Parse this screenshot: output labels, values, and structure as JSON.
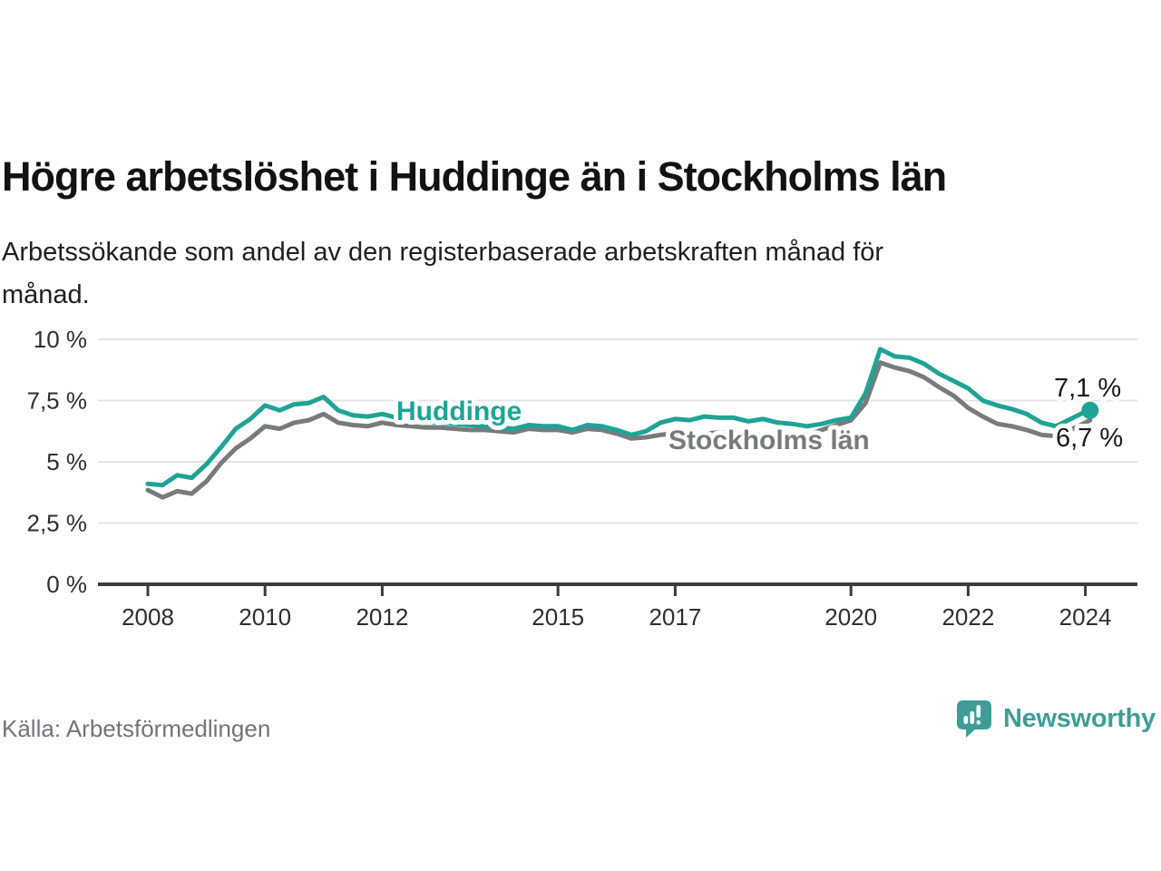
{
  "title": "Högre arbetslöshet i Huddinge än i Stockholms län",
  "subtitle_lines": [
    "Arbetssökande som andel av den registerbaserade arbetskraften månad för",
    "månad."
  ],
  "source": "Källa: Arbetsförmedlingen",
  "logo": {
    "text": "Newsworthy"
  },
  "colors": {
    "huddinge": "#1fa396",
    "stockholm": "#797a7c",
    "grid": "#e4e4e4",
    "axis": "#3c3c3c",
    "tick_text": "#2e2e2e",
    "end_label_text": "#1a1a1a",
    "logo_teal": "#3f9d98"
  },
  "chart_data": {
    "type": "line",
    "title": "",
    "xlabel": "",
    "ylabel": "",
    "ylim": [
      0,
      10
    ],
    "xlim": [
      2008,
      2024.2
    ],
    "grid": true,
    "legend_position": "inline-labels",
    "y_ticks": [
      {
        "value": 0,
        "label": "0 %"
      },
      {
        "value": 2.5,
        "label": "2,5 %"
      },
      {
        "value": 5,
        "label": "5 %"
      },
      {
        "value": 7.5,
        "label": "7,5 %"
      },
      {
        "value": 10,
        "label": "10 %"
      }
    ],
    "x_ticks": [
      {
        "value": 2008,
        "label": "2008"
      },
      {
        "value": 2010,
        "label": "2010"
      },
      {
        "value": 2012,
        "label": "2012"
      },
      {
        "value": 2015,
        "label": "2015"
      },
      {
        "value": 2017,
        "label": "2017"
      },
      {
        "value": 2020,
        "label": "2020"
      },
      {
        "value": 2022,
        "label": "2022"
      },
      {
        "value": 2024,
        "label": "2024"
      }
    ],
    "x": [
      2008,
      2008.25,
      2008.5,
      2008.75,
      2009,
      2009.25,
      2009.5,
      2009.75,
      2010,
      2010.25,
      2010.5,
      2010.75,
      2011,
      2011.25,
      2011.5,
      2011.75,
      2012,
      2012.25,
      2012.5,
      2012.75,
      2013,
      2013.25,
      2013.5,
      2013.75,
      2014,
      2014.25,
      2014.5,
      2014.75,
      2015,
      2015.25,
      2015.5,
      2015.75,
      2016,
      2016.25,
      2016.5,
      2016.75,
      2017,
      2017.25,
      2017.5,
      2017.75,
      2018,
      2018.25,
      2018.5,
      2018.75,
      2019,
      2019.25,
      2019.5,
      2019.75,
      2020,
      2020.25,
      2020.5,
      2020.75,
      2021,
      2021.25,
      2021.5,
      2021.75,
      2022,
      2022.25,
      2022.5,
      2022.75,
      2023,
      2023.25,
      2023.5,
      2023.75,
      2024,
      2024.08
    ],
    "series": [
      {
        "id": "huddinge",
        "name": "Huddinge",
        "color": "#1fa396",
        "end_dot": true,
        "label": {
          "x": 437,
          "y": 118
        },
        "end_label": {
          "text": "7,1 %",
          "x": 1162,
          "y": 92
        },
        "values": [
          4.1,
          4.05,
          4.45,
          4.35,
          4.9,
          5.6,
          6.35,
          6.75,
          7.3,
          7.1,
          7.35,
          7.4,
          7.65,
          7.1,
          6.9,
          6.85,
          6.95,
          6.8,
          6.75,
          6.6,
          6.6,
          6.55,
          6.5,
          6.45,
          6.4,
          6.35,
          6.5,
          6.45,
          6.45,
          6.3,
          6.5,
          6.45,
          6.3,
          6.1,
          6.25,
          6.6,
          6.75,
          6.7,
          6.85,
          6.8,
          6.8,
          6.65,
          6.75,
          6.6,
          6.55,
          6.45,
          6.55,
          6.7,
          6.8,
          7.8,
          9.6,
          9.3,
          9.25,
          9.0,
          8.6,
          8.3,
          8.0,
          7.5,
          7.3,
          7.15,
          6.95,
          6.6,
          6.45,
          6.75,
          7.05,
          7.1
        ]
      },
      {
        "id": "stockholms-lan",
        "name": "Stockholms län",
        "color": "#797a7c",
        "end_dot": false,
        "label": {
          "x": 737,
          "y": 150
        },
        "end_label": {
          "text": "6,7 %",
          "x": 1164,
          "y": 147
        },
        "values": [
          3.85,
          3.55,
          3.8,
          3.7,
          4.2,
          4.95,
          5.55,
          5.95,
          6.45,
          6.35,
          6.6,
          6.7,
          6.95,
          6.6,
          6.5,
          6.45,
          6.6,
          6.5,
          6.45,
          6.4,
          6.4,
          6.35,
          6.3,
          6.3,
          6.25,
          6.2,
          6.35,
          6.3,
          6.3,
          6.2,
          6.35,
          6.3,
          6.15,
          5.95,
          6.0,
          6.1,
          6.15,
          6.1,
          6.15,
          6.2,
          6.15,
          6.1,
          6.1,
          6.0,
          6.0,
          6.1,
          6.3,
          6.5,
          6.7,
          7.4,
          9.05,
          8.85,
          8.7,
          8.45,
          8.05,
          7.7,
          7.2,
          6.85,
          6.55,
          6.45,
          6.3,
          6.1,
          6.05,
          6.3,
          6.6,
          6.7
        ]
      }
    ]
  }
}
